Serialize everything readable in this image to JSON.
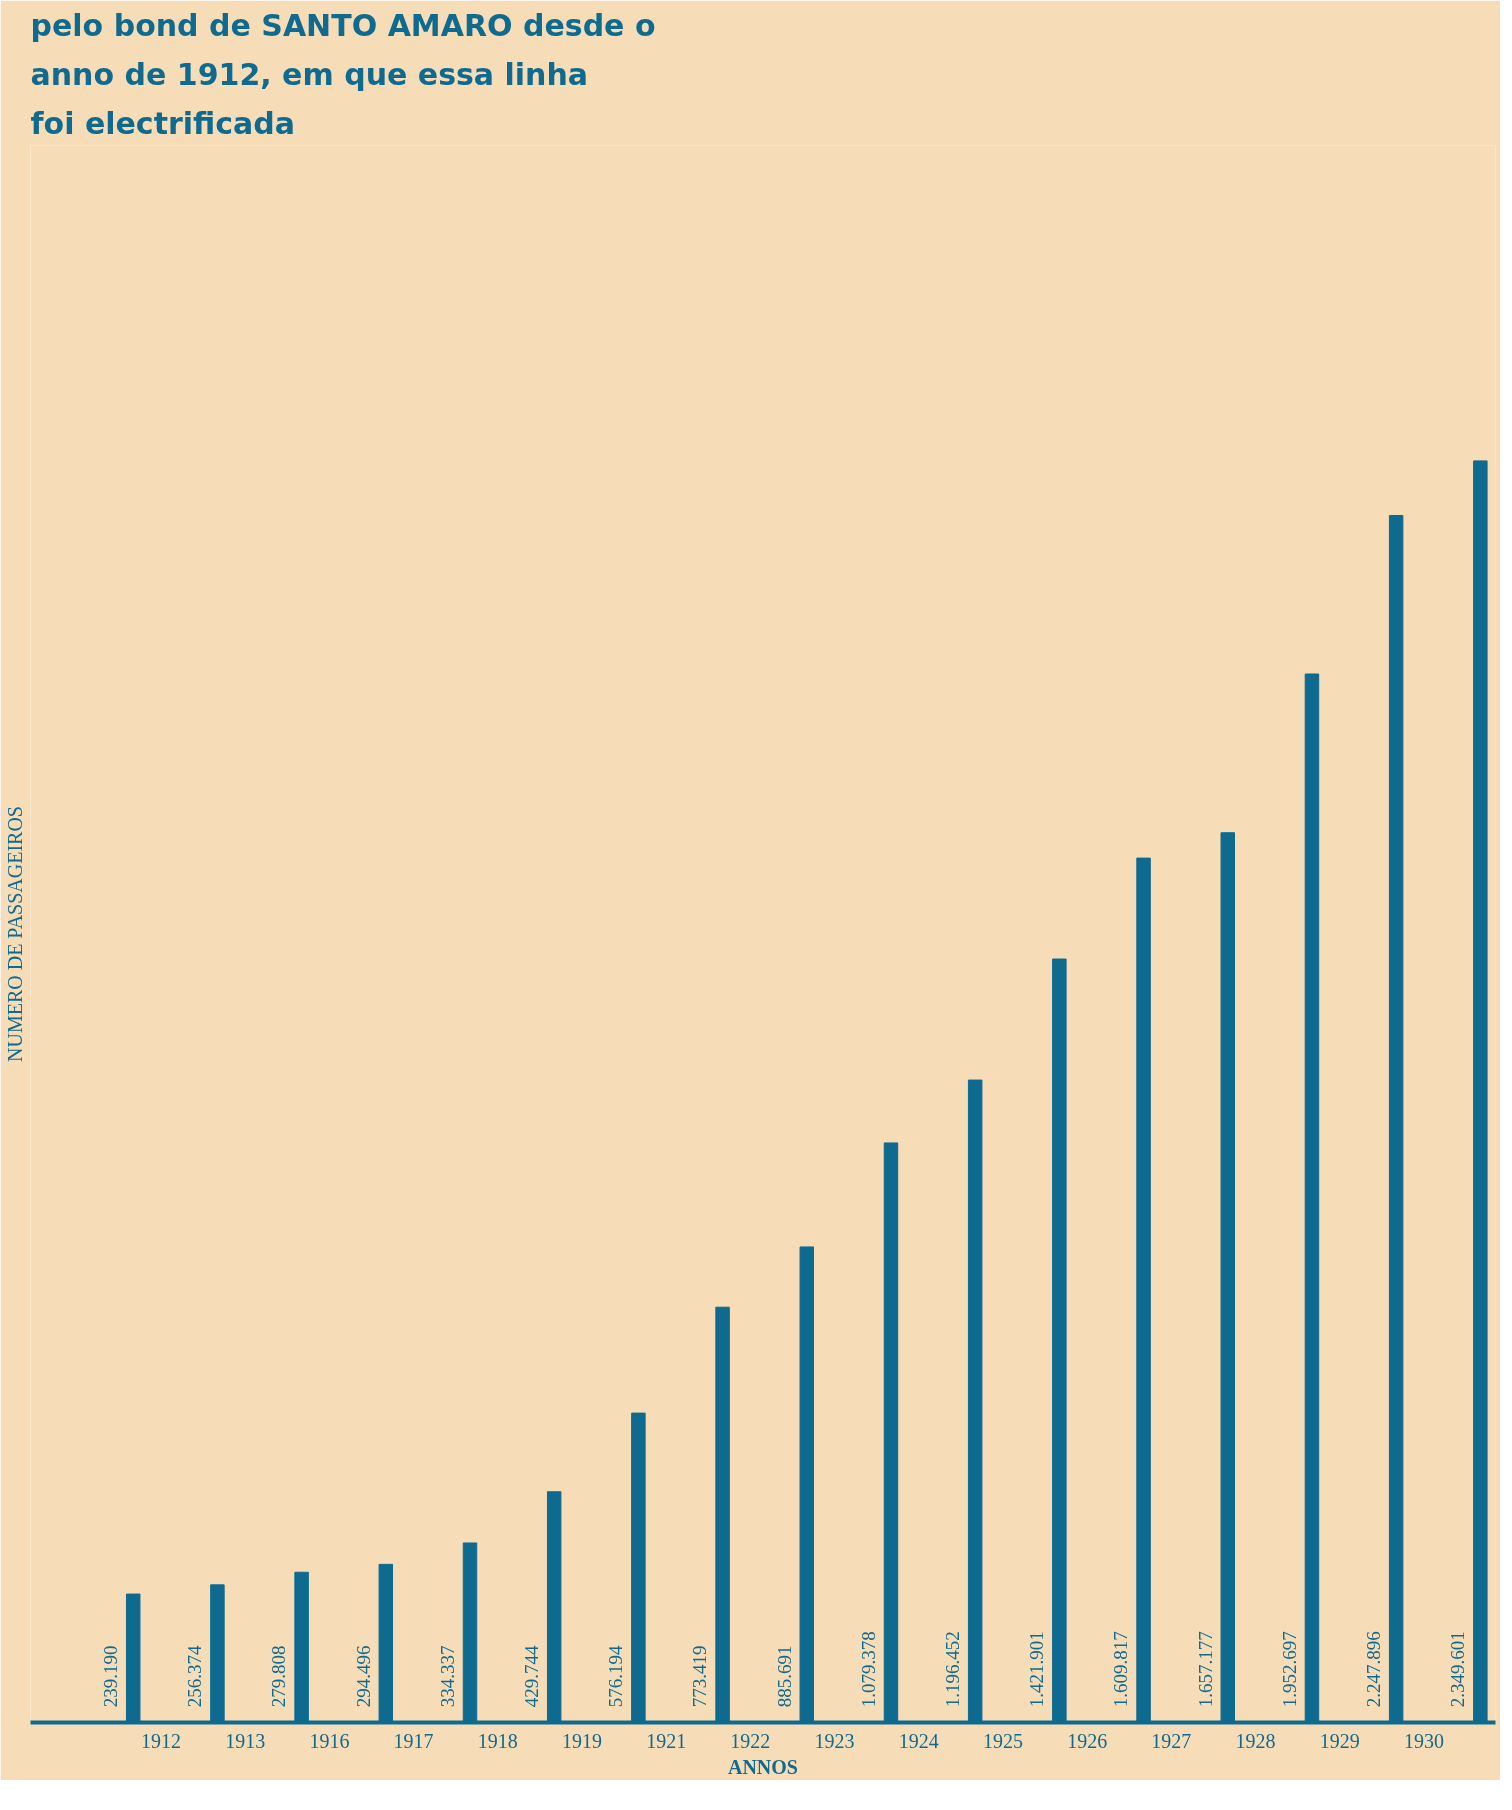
{
  "chart_data": {
    "type": "bar",
    "title": "pelo bond de SANTO AMARO desde o anno de 1912, em que essa linha foi electrificada",
    "xlabel": "ANNOS",
    "ylabel": "NUMERO DE PASSAGEIROS",
    "categories": [
      "1912",
      "1913",
      "1916",
      "1917",
      "1918",
      "1919",
      "1921",
      "1922",
      "1923",
      "1924",
      "1925",
      "1926",
      "1927",
      "1928",
      "1929",
      "1930",
      null
    ],
    "values": [
      239190,
      256374,
      279808,
      294496,
      334337,
      429744,
      576194,
      773419,
      885691,
      1079378,
      1196452,
      1421901,
      1609817,
      1657177,
      1952697,
      2247896,
      2349601
    ],
    "value_labels": [
      "239.190",
      "256.374",
      "279.808",
      "294.496",
      "334.337",
      "429.744",
      "576.194",
      "773.419",
      "885.691",
      "1.079.378",
      "1.196.452",
      "1.421.901",
      "1.609.817",
      "1.657.177",
      "1.952.697",
      "2.247.896",
      "2.349.601"
    ],
    "color": "#0f6a8f",
    "grid": false,
    "tick_labels": "x"
  }
}
